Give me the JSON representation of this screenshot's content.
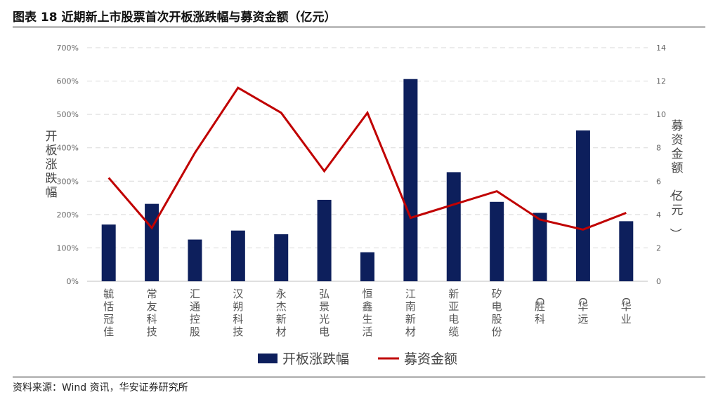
{
  "header": {
    "title": "图表 18 近期新上市股票首次开板涨跌幅与募资金额（亿元）"
  },
  "footer": {
    "source": "资料来源：Wind 资讯，华安证券研究所"
  },
  "colors": {
    "bar": "#0d1f5c",
    "line": "#c00000",
    "grid": "#d9d9d9"
  },
  "chart_data": {
    "type": "bar",
    "categories": [
      "毓恬冠佳",
      "常友科技",
      "汇通控股",
      "汉朔科技",
      "永杰新材",
      "弘景光电",
      "恒鑫生活",
      "江南新材",
      "新亚电缆",
      "矽电股份",
      "C胜科",
      "C华远",
      "C华业"
    ],
    "series": [
      {
        "name": "开板涨跌幅",
        "type": "bar",
        "axis": "left",
        "values": [
          170,
          232,
          125,
          152,
          141,
          244,
          87,
          606,
          327,
          238,
          205,
          452,
          180
        ]
      },
      {
        "name": "募资金额",
        "type": "line",
        "axis": "right",
        "values": [
          6.2,
          3.2,
          7.7,
          11.6,
          10.1,
          6.6,
          10.1,
          3.8,
          4.6,
          5.4,
          3.7,
          3.1,
          4.1
        ]
      }
    ],
    "yaxis_left": {
      "label": "开板涨跌幅",
      "ylim": [
        0,
        700
      ],
      "ticks": [
        "0%",
        "100%",
        "200%",
        "300%",
        "400%",
        "500%",
        "600%",
        "700%"
      ]
    },
    "yaxis_right": {
      "label": "募资金额（亿元）",
      "ylim": [
        0,
        14
      ],
      "ticks": [
        "0",
        "2",
        "4",
        "6",
        "8",
        "10",
        "12",
        "14"
      ]
    },
    "grid": true,
    "legend_position": "bottom"
  }
}
